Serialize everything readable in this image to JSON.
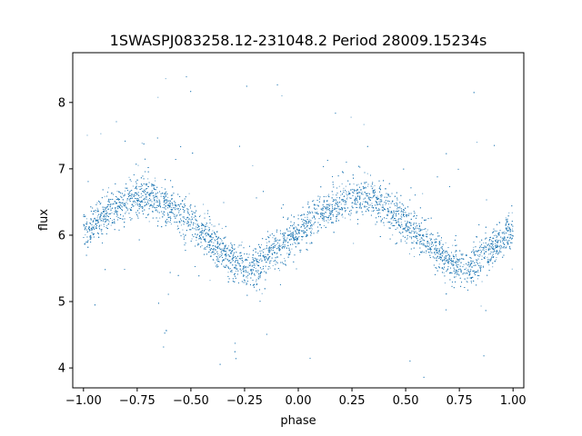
{
  "chart_data": {
    "type": "scatter",
    "title": "1SWASPJ083258.12-231048.2 Period 28009.15234s",
    "xlabel": "phase",
    "ylabel": "flux",
    "xlim": [
      -1.05,
      1.05
    ],
    "ylim": [
      3.7,
      8.75
    ],
    "xticks": [
      -1.0,
      -0.75,
      -0.5,
      -0.25,
      0.0,
      0.25,
      0.5,
      0.75,
      1.0
    ],
    "xtick_labels": [
      "−1.00",
      "−0.75",
      "−0.50",
      "−0.25",
      "0.00",
      "0.25",
      "0.50",
      "0.75",
      "1.00"
    ],
    "yticks": [
      4,
      5,
      6,
      7,
      8
    ],
    "ytick_labels": [
      "4",
      "5",
      "6",
      "7",
      "8"
    ],
    "grid": false,
    "legend": "none",
    "marker_color": "#1f77b4",
    "series": [
      {
        "phase_range": [
          -1.0,
          1.0
        ],
        "point_count_estimate": 9000,
        "light_curve_profile": {
          "phase": [
            -1.0,
            -0.9,
            -0.8,
            -0.75,
            -0.7,
            -0.6,
            -0.5,
            -0.4,
            -0.3,
            -0.25,
            -0.2,
            -0.1,
            0.0,
            0.1,
            0.2,
            0.25,
            0.3,
            0.4,
            0.5,
            0.6,
            0.7,
            0.75,
            0.8,
            0.9,
            1.0
          ],
          "flux": [
            6.05,
            6.3,
            6.52,
            6.58,
            6.6,
            6.45,
            6.2,
            5.9,
            5.6,
            5.5,
            5.52,
            5.8,
            6.05,
            6.3,
            6.52,
            6.58,
            6.6,
            6.45,
            6.2,
            5.9,
            5.6,
            5.5,
            5.52,
            5.8,
            6.05
          ]
        },
        "typical_scatter": 0.15,
        "outlier_flux_range": [
          4.0,
          8.55
        ]
      }
    ]
  }
}
